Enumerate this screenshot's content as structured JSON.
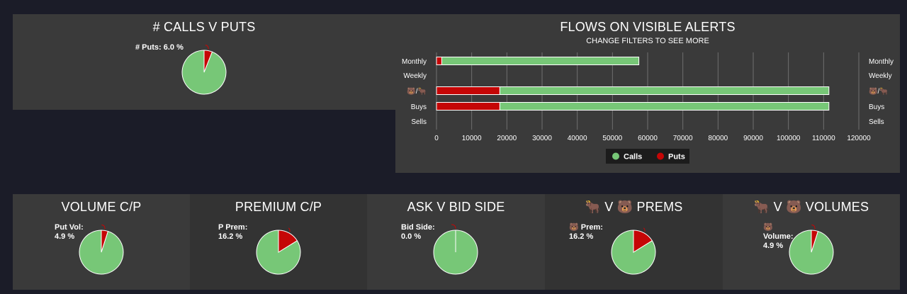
{
  "colors": {
    "calls": "#77c777",
    "puts": "#c50606",
    "grid": "#707070"
  },
  "chart_data": [
    {
      "type": "pie",
      "title": "# CALLS V PUTS",
      "slices": [
        {
          "name": "Calls",
          "value": 94.0
        },
        {
          "name": "Puts",
          "value": 6.0
        }
      ],
      "label": {
        "line1": "# Puts: 6.0 %",
        "line2": ""
      }
    },
    {
      "type": "bar",
      "orientation": "horizontal",
      "stacked": true,
      "title": "FLOWS ON VISIBLE ALERTS",
      "subtitle": "CHANGE FILTERS TO SEE MORE",
      "categories": [
        "Monthly",
        "Weekly",
        "🐻/🐂",
        "Buys",
        "Sells"
      ],
      "series": [
        {
          "name": "Puts",
          "values": [
            1500,
            0,
            18000,
            18000,
            0
          ]
        },
        {
          "name": "Calls",
          "values": [
            56000,
            0,
            93500,
            93500,
            0
          ]
        }
      ],
      "xlim": [
        0,
        120000
      ],
      "xticks": [
        "0",
        "10000",
        "20000",
        "30000",
        "40000",
        "50000",
        "60000",
        "70000",
        "80000",
        "90000",
        "100000",
        "110000",
        "120000"
      ],
      "legend": [
        "Calls",
        "Puts"
      ]
    },
    {
      "type": "pie",
      "title": "VOLUME C/P",
      "slices": [
        {
          "name": "Calls",
          "value": 95.1
        },
        {
          "name": "Puts",
          "value": 4.9
        }
      ],
      "label": {
        "line1": "Put Vol:",
        "line2": "4.9 %"
      }
    },
    {
      "type": "pie",
      "title": "PREMIUM C/P",
      "slices": [
        {
          "name": "Calls",
          "value": 83.8
        },
        {
          "name": "Puts",
          "value": 16.2
        }
      ],
      "label": {
        "line1": "P Prem:",
        "line2": "16.2 %"
      }
    },
    {
      "type": "pie",
      "title": "ASK V BID SIDE",
      "slices": [
        {
          "name": "Ask",
          "value": 100.0
        },
        {
          "name": "Bid",
          "value": 0.0
        }
      ],
      "label": {
        "line1": "Bid Side:",
        "line2": "0.0 %"
      }
    },
    {
      "type": "pie",
      "title": "🐂 V 🐻 PREMS",
      "slices": [
        {
          "name": "Bull",
          "value": 83.8
        },
        {
          "name": "Bear",
          "value": 16.2
        }
      ],
      "label": {
        "line1": "🐻 Prem:",
        "line2": "16.2 %"
      }
    },
    {
      "type": "pie",
      "title": "🐂 V 🐻 VOLUMES",
      "slices": [
        {
          "name": "Bull",
          "value": 95.1
        },
        {
          "name": "Bear",
          "value": 4.9
        }
      ],
      "label": {
        "line1": "🐻",
        "line2": "Volume:",
        "line3": "4.9 %"
      }
    }
  ]
}
